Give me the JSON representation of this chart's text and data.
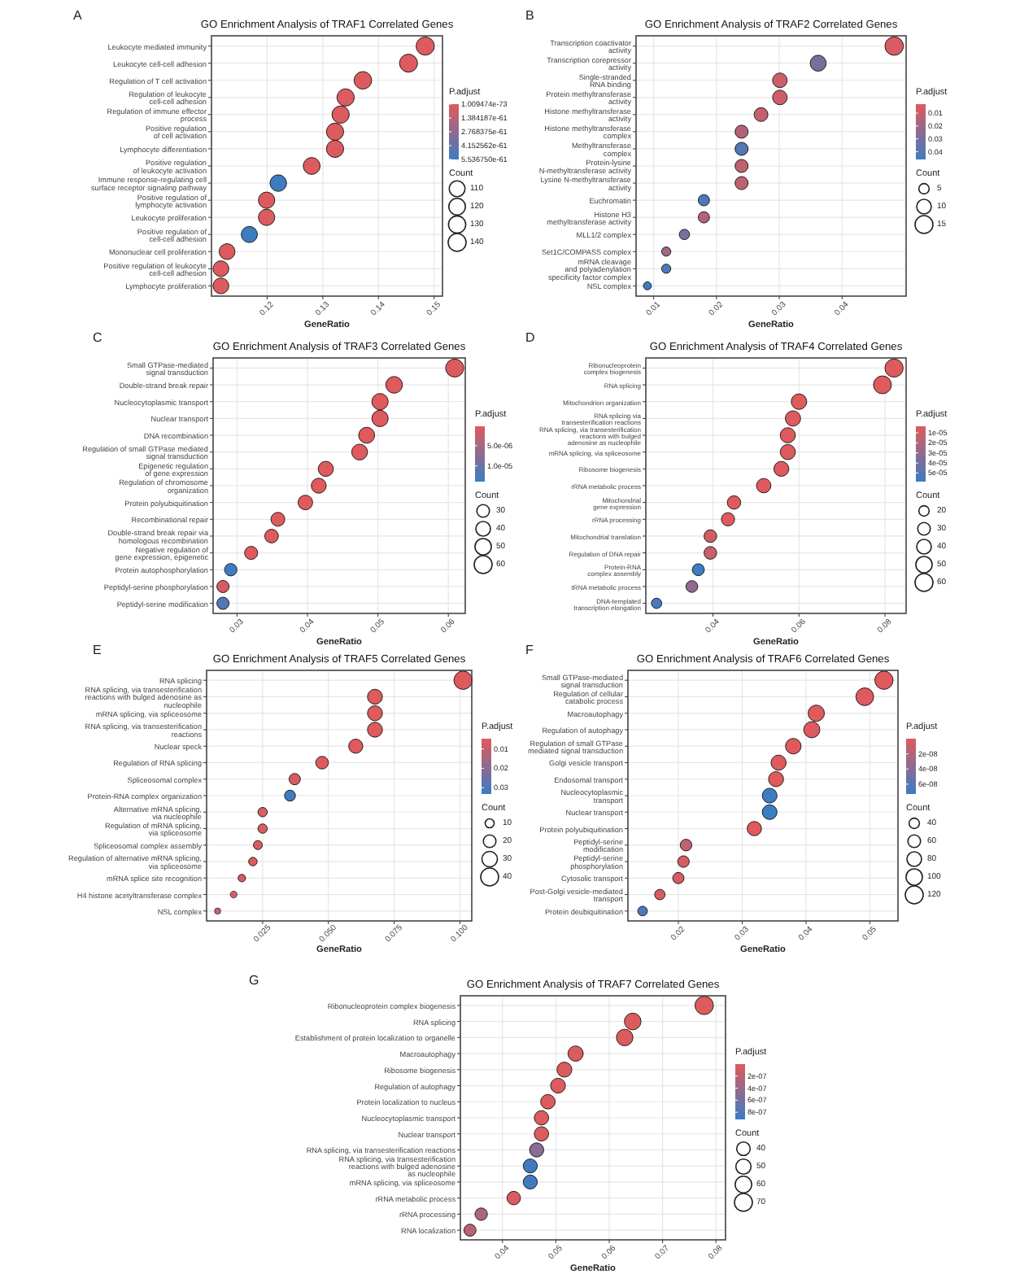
{
  "chart_data": [
    {
      "type": "bubble",
      "title": "GO Enrichment Analysis of TRAF1 Correlated Genes",
      "xlabel": "GeneRatio",
      "annotations": [
        "A"
      ],
      "orientation": "horizontal",
      "grid": true,
      "clabel": "P.adjust",
      "legend_title": "Count",
      "categories": [
        "Leukocyte mediated immunity",
        "Leukocyte cell-cell adhesion",
        "Regulation of T cell activation",
        "Regulation of leukocyte\ncell-cell adhesion",
        "Regulation of immune effector\nprocess",
        "Positive regulation\nof cell activation",
        "Lymphocyte differentiation",
        "Positive regulation\nof leukocyte activation",
        "Immune response-regulating cell\nsurface receptor signaling pathway",
        "Positive regulation of\nlymphocyte activation",
        "Leukocyte proliferation",
        "Positive regulation of\ncell-cell adhesion",
        "Mononuclear cell proliferation",
        "Positive regulation of leukocyte\ncell-cell adhesion",
        "Lymphocyte proliferation"
      ],
      "values": [
        0.1484,
        0.1454,
        0.1372,
        0.1341,
        0.1332,
        0.1322,
        0.1322,
        0.128,
        0.122,
        0.1199,
        0.1199,
        0.1168,
        0.1128,
        0.1117,
        0.1117
      ],
      "sizes": [
        145,
        142,
        135,
        131,
        131,
        130,
        130,
        125,
        120,
        117,
        117,
        114,
        110,
        109,
        109
      ],
      "cvalues": [
        1e-62,
        1e-62,
        1e-62,
        1e-62,
        1e-62,
        1e-62,
        1e-62,
        1e-62,
        5.5e-61,
        1e-62,
        1e-62,
        5.5e-61,
        1e-62,
        1e-62,
        1e-62
      ],
      "size_legend": [
        110,
        120,
        130,
        140
      ],
      "clim": [
        1.009474e-73,
        5.53675e-61
      ],
      "cticks": [
        {
          "value": 1.009474e-73,
          "label": "1.009474e-73"
        },
        {
          "value": 1.384187e-61,
          "label": "1.384187e-61"
        },
        {
          "value": 2.768375e-61,
          "label": "2.768375e-61"
        },
        {
          "value": 4.152562e-61,
          "label": "4.152562e-61"
        },
        {
          "value": 5.53675e-61,
          "label": "5.536750e-61"
        }
      ],
      "xlim": [
        0.11,
        0.1515
      ],
      "xticks": [
        0.12,
        0.13,
        0.14,
        0.15
      ]
    },
    {
      "type": "bubble",
      "title": "GO Enrichment Analysis of TRAF2 Correlated Genes",
      "xlabel": "GeneRatio",
      "annotations": [
        "B"
      ],
      "orientation": "horizontal",
      "grid": true,
      "clabel": "P.adjust",
      "legend_title": "Count",
      "categories": [
        "Transcription coactivator\nactivity",
        "Transcription corepressor\nactivity",
        "Single-stranded\nRNA binding",
        "Protein methyltransferase\nactivity",
        "Histone methyltransferase\nactivity",
        "Histone methyltransferase\ncomplex",
        "Methyltransferase\ncomplex",
        "Protein-lysine\nN-methyltransferase activity",
        "Lysine N-methyltransferase\nactivity",
        "Euchromatin",
        "Histone H3\nmethyltransferase activity",
        "MLL1/2 complex",
        "Set1C/COMPASS complex",
        "mRNA cleavage\nand polyadenylation\nspecificity factor complex",
        "NSL complex"
      ],
      "values": [
        0.0483,
        0.0362,
        0.0301,
        0.0301,
        0.0271,
        0.024,
        0.024,
        0.024,
        0.024,
        0.018,
        0.018,
        0.0149,
        0.012,
        0.012,
        0.009
      ],
      "sizes": [
        16,
        12,
        10,
        10,
        9,
        8,
        8,
        8,
        8,
        6,
        6,
        5,
        4,
        4,
        3
      ],
      "cvalues": [
        0.005,
        0.03,
        0.008,
        0.008,
        0.01,
        0.015,
        0.04,
        0.012,
        0.012,
        0.042,
        0.015,
        0.03,
        0.02,
        0.042,
        0.045
      ],
      "size_legend": [
        5,
        10,
        15
      ],
      "clim": [
        0.003,
        0.046
      ],
      "cticks": [
        0.01,
        0.02,
        0.03,
        0.04
      ],
      "xlim": [
        0.0072,
        0.0502
      ],
      "xticks": [
        0.01,
        0.02,
        0.03,
        0.04
      ]
    },
    {
      "type": "bubble",
      "title": "GO Enrichment Analysis of TRAF3 Correlated Genes",
      "xlabel": "GeneRatio",
      "annotations": [
        "C"
      ],
      "orientation": "horizontal",
      "grid": true,
      "clabel": "P.adjust",
      "legend_title": "Count",
      "categories": [
        "Small GTPase-mediated\nsignal transduction",
        "Double-strand break repair",
        "Nucleocytoplasmic transport",
        "Nuclear transport",
        "DNA recombination",
        "Regulation of small GTPase mediated\nsignal transduction",
        "Epigenetic regulation\nof gene expression",
        "Regulation of chromosome\norganization",
        "Protein polyubiquitination",
        "Recombinational repair",
        "Double-strand break repair via\nhomologous recombination",
        "Negative regulation of\ngene expression, epigenetic",
        "Protein autophosphorylation",
        "Peptidyl-serine phosphorylation",
        "Peptidyl-serine modification"
      ],
      "values": [
        0.0609,
        0.0523,
        0.0503,
        0.0503,
        0.0484,
        0.0474,
        0.0426,
        0.0416,
        0.0397,
        0.0358,
        0.0349,
        0.032,
        0.0291,
        0.028,
        0.028
      ],
      "sizes": [
        61,
        52,
        50,
        50,
        48,
        47,
        43,
        42,
        40,
        36,
        35,
        32,
        29,
        28,
        28
      ],
      "cvalues": [
        3e-07,
        3e-07,
        3e-07,
        3e-07,
        3e-07,
        3e-07,
        3e-07,
        3e-07,
        3e-07,
        3e-07,
        3e-07,
        3e-07,
        1.39e-05,
        1e-06,
        1.2e-05
      ],
      "size_legend": [
        30,
        40,
        50,
        60
      ],
      "clim": [
        2e-07,
        1.39e-05
      ],
      "cticks": [
        {
          "value": 5e-06,
          "label": "5.0e-06"
        },
        {
          "value": 1e-05,
          "label": "1.0e-05"
        }
      ],
      "xlim": [
        0.0266,
        0.0624
      ],
      "xticks": [
        0.03,
        0.04,
        0.05,
        0.06
      ]
    },
    {
      "type": "bubble",
      "title": "GO Enrichment Analysis of TRAF4 Correlated Genes",
      "xlabel": "GeneRatio",
      "annotations": [
        "D"
      ],
      "orientation": "horizontal",
      "grid": true,
      "clabel": "P.adjust",
      "legend_title": "Count",
      "categories": [
        "Ribonucleoprotein\ncomplex biogenesis",
        "RNA splicing",
        "Mitochondrion organization",
        "RNA splicing via\ntransesterification reactions",
        "RNA splicing, via transesterification\nreactions with bulged\nadenosine as nucleophile",
        "mRNA splicing, via spliceosome",
        "Ribosome biogenesis",
        "rRNA metabolic process",
        "Mitochondrial\ngene expression",
        "rRNA processing",
        "Mitochondrial translation",
        "Regulation of DNA repair",
        "Protein-RNA\ncomplex assembly",
        "tRNA metabolic process",
        "DNA-templated\ntranscription elongation"
      ],
      "values": [
        0.0821,
        0.0794,
        0.06,
        0.0586,
        0.0574,
        0.0574,
        0.0559,
        0.0518,
        0.0449,
        0.0435,
        0.0394,
        0.0394,
        0.0366,
        0.0351,
        0.0269
      ],
      "sizes": [
        62,
        60,
        45,
        44,
        43,
        43,
        42,
        39,
        34,
        33,
        30,
        30,
        27,
        26,
        20
      ],
      "cvalues": [
        4e-06,
        4e-06,
        4e-06,
        4e-06,
        4e-06,
        4e-06,
        4e-06,
        4e-06,
        4e-06,
        4e-06,
        8e-06,
        1.2e-05,
        5.8e-05,
        3e-05,
        5.5e-05
      ],
      "size_legend": [
        20,
        30,
        40,
        50,
        60
      ],
      "clim": [
        3.5e-06,
        5.85e-05
      ],
      "cticks": [
        {
          "value": 1e-05,
          "label": "1e-05"
        },
        {
          "value": 2e-05,
          "label": "2e-05"
        },
        {
          "value": 3e-05,
          "label": "3e-05"
        },
        {
          "value": 4e-05,
          "label": "4e-05"
        },
        {
          "value": 5e-05,
          "label": "5e-05"
        }
      ],
      "xlim": [
        0.0244,
        0.0849
      ],
      "xticks": [
        0.04,
        0.06,
        0.08
      ]
    },
    {
      "type": "bubble",
      "title": "GO Enrichment Analysis of TRAF5 Correlated Genes",
      "xlabel": "GeneRatio",
      "annotations": [
        "E"
      ],
      "orientation": "horizontal",
      "grid": true,
      "clabel": "P.adjust",
      "legend_title": "Count",
      "categories": [
        "RNA splicing",
        "RNA splicing, via transesterification\nreactions with bulged adenosine as\nnucleophile",
        "mRNA splicing, via spliceosome",
        "RNA splicing, via transesterification\nreactions",
        "Nuclear speck",
        "Regulation of RNA splicing",
        "Spliceosomal complex",
        "Protein-RNA complex organization",
        "Alternative mRNA splicing,\nvia nucleophile",
        "Regulation of mRNA splicing,\nvia spliceosome",
        "Spliceosomal complex assembly",
        "Regulation of alternative mRNA splicing,\nvia spliceosome",
        "mRNA splice site recognition",
        "H4 histone acetyltransferase complex",
        "NSL complex"
      ],
      "values": [
        0.1012,
        0.0677,
        0.0677,
        0.0677,
        0.0604,
        0.0476,
        0.0372,
        0.0354,
        0.025,
        0.025,
        0.0232,
        0.0213,
        0.0171,
        0.014,
        0.0079
      ],
      "sizes": [
        42,
        28,
        28,
        28,
        25,
        20,
        16,
        15,
        11,
        11,
        10,
        9,
        7,
        6,
        5
      ],
      "cvalues": [
        0.005,
        0.005,
        0.005,
        0.005,
        0.005,
        0.005,
        0.006,
        0.033,
        0.006,
        0.006,
        0.006,
        0.006,
        0.007,
        0.008,
        0.01
      ],
      "size_legend": [
        10,
        20,
        30,
        40
      ],
      "clim": [
        0.0047,
        0.0333
      ],
      "cticks": [
        0.01,
        0.02,
        0.03
      ],
      "xlim": [
        0.0037,
        0.1045
      ],
      "xticks": [
        {
          "value": 0.025,
          "label": "0.025"
        },
        {
          "value": 0.05,
          "label": "0.050"
        },
        {
          "value": 0.075,
          "label": "0.075"
        },
        {
          "value": 0.1,
          "label": "0.100"
        }
      ]
    },
    {
      "type": "bubble",
      "title": "GO Enrichment Analysis of TRAF6 Correlated Genes",
      "xlabel": "GeneRatio",
      "annotations": [
        "F"
      ],
      "orientation": "horizontal",
      "grid": true,
      "clabel": "P.adjust",
      "legend_title": "Count",
      "categories": [
        "Small GTPase-mediated\nsignal transduction",
        "Regulation of cellular\ncatabolic process",
        "Macroautophagy",
        "Regulation of autophagy",
        "Regulation of small GTPase\nmediated signal transduction",
        "Golgi vesicle transport",
        "Endosomal transport",
        "Nucleocytoplasmic\ntransport",
        "Nuclear transport",
        "Protein polyubiquitination",
        "Peptidyl-serine\nmodification",
        "Peptidyl-serine\nphosphorylation",
        "Cytosolic transport",
        "Post-Golgi vesicle-mediated\ntransport",
        "Protein deubiquitination"
      ],
      "values": [
        0.0522,
        0.0492,
        0.0416,
        0.0409,
        0.038,
        0.0357,
        0.0353,
        0.0343,
        0.0343,
        0.0319,
        0.0212,
        0.0208,
        0.02,
        0.0171,
        0.0144
      ],
      "sizes": [
        125,
        118,
        100,
        98,
        91,
        86,
        85,
        82,
        82,
        77,
        51,
        50,
        48,
        41,
        35
      ],
      "cvalues": [
        1e-09,
        1e-09,
        1e-09,
        1e-09,
        1e-09,
        1e-09,
        1e-09,
        7.3e-08,
        7.3e-08,
        1e-09,
        1.5e-08,
        5e-09,
        5e-09,
        5e-09,
        6.5e-08
      ],
      "size_legend": [
        40,
        60,
        80,
        100,
        120
      ],
      "clim": [
        0,
        7.3e-08
      ],
      "cticks": [
        {
          "value": 2e-08,
          "label": "2e-08"
        },
        {
          "value": 4e-08,
          "label": "4e-08"
        },
        {
          "value": 6e-08,
          "label": "6e-08"
        }
      ],
      "xlim": [
        0.0121,
        0.0544
      ],
      "xticks": [
        0.02,
        0.03,
        0.04,
        0.05
      ]
    },
    {
      "type": "bubble",
      "title": "GO Enrichment Analysis of TRAF7 Correlated Genes",
      "xlabel": "GeneRatio",
      "annotations": [
        "G"
      ],
      "orientation": "horizontal",
      "grid": true,
      "clabel": "P.adjust",
      "legend_title": "Count",
      "categories": [
        "Ribonucleoprotein complex biogenesis",
        "RNA splicing",
        "Establishment of protein localization to organelle",
        "Macroautophagy",
        "Ribosome biogenesis",
        "Regulation of autophagy",
        "Protein localization to nucleus",
        "Nucleocytoplasmic transport",
        "Nuclear transport",
        "RNA splicing, via transesterification reactions",
        "RNA splicing, via transesterification\nreactions with bulged adenosine\nas nucleophile",
        "mRNA splicing, via spliceosome",
        "rRNA metabolic process",
        "rRNA processing",
        "RNA localization"
      ],
      "values": [
        0.0778,
        0.0644,
        0.0629,
        0.0537,
        0.0516,
        0.0504,
        0.0485,
        0.0473,
        0.0473,
        0.0464,
        0.0452,
        0.0452,
        0.0421,
        0.036,
        0.0339
      ],
      "sizes": [
        74,
        61,
        60,
        51,
        49,
        48,
        46,
        45,
        45,
        44,
        43,
        43,
        40,
        34,
        32
      ],
      "cvalues": [
        2e-08,
        2e-08,
        2e-08,
        2e-08,
        2e-08,
        2e-08,
        2e-08,
        2e-08,
        2e-08,
        5e-07,
        9e-07,
        9e-07,
        2e-08,
        3e-07,
        2e-07
      ],
      "size_legend": [
        40,
        50,
        60,
        70
      ],
      "clim": [
        0,
        9.2e-07
      ],
      "cticks": [
        {
          "value": 2e-07,
          "label": "2e-07"
        },
        {
          "value": 4e-07,
          "label": "4e-07"
        },
        {
          "value": 6e-07,
          "label": "6e-07"
        },
        {
          "value": 8e-07,
          "label": "8e-07"
        }
      ],
      "xlim": [
        0.0321,
        0.0818
      ],
      "xticks": [
        0.04,
        0.05,
        0.06,
        0.07,
        0.08
      ]
    }
  ]
}
